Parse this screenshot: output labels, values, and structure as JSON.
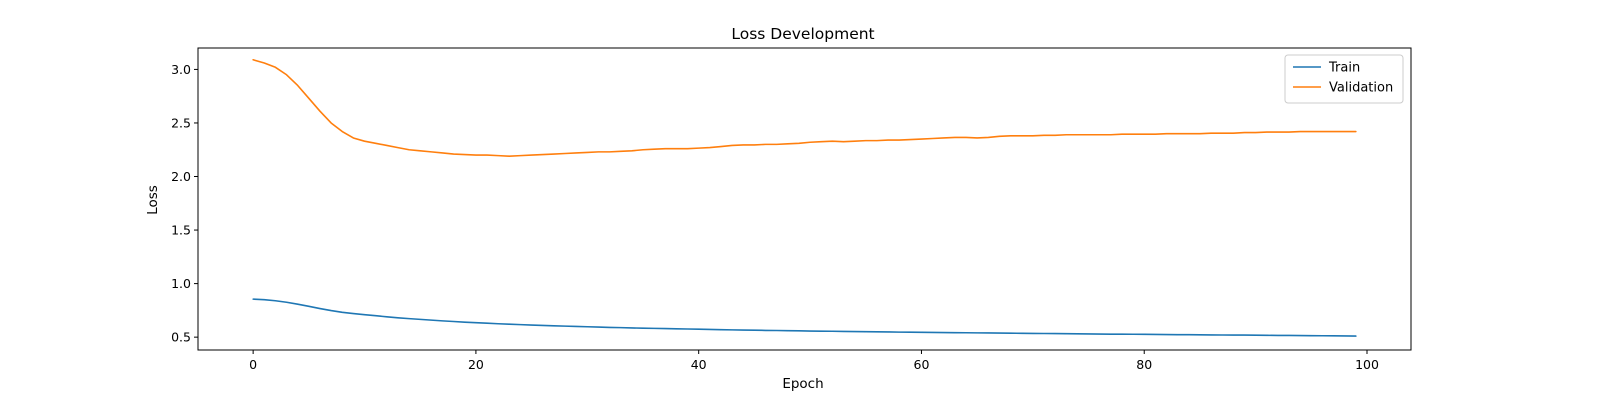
{
  "chart_data": {
    "type": "line",
    "title": "Loss Development",
    "xlabel": "Epoch",
    "ylabel": "Loss",
    "xlim": [
      -4.95,
      103.95
    ],
    "ylim": [
      0.38,
      3.2
    ],
    "xticks": [
      0,
      20,
      40,
      60,
      80,
      100
    ],
    "yticks": [
      0.5,
      1.0,
      1.5,
      2.0,
      2.5,
      3.0
    ],
    "xtick_labels": [
      "0",
      "20",
      "40",
      "60",
      "80",
      "100"
    ],
    "ytick_labels": [
      "0.5",
      "1.0",
      "1.5",
      "2.0",
      "2.5",
      "3.0"
    ],
    "grid": false,
    "legend_position": "top-right",
    "colors": {
      "Train": "#1f77b4",
      "Validation": "#ff7f0e"
    },
    "series": [
      {
        "name": "Train",
        "x": [
          0,
          1,
          2,
          3,
          4,
          5,
          6,
          7,
          8,
          9,
          10,
          11,
          12,
          13,
          14,
          15,
          16,
          17,
          18,
          19,
          20,
          21,
          22,
          23,
          24,
          25,
          26,
          27,
          28,
          29,
          30,
          31,
          32,
          33,
          34,
          35,
          36,
          37,
          38,
          39,
          40,
          41,
          42,
          43,
          44,
          45,
          46,
          47,
          48,
          49,
          50,
          51,
          52,
          53,
          54,
          55,
          56,
          57,
          58,
          59,
          60,
          61,
          62,
          63,
          64,
          65,
          66,
          67,
          68,
          69,
          70,
          71,
          72,
          73,
          74,
          75,
          76,
          77,
          78,
          79,
          80,
          81,
          82,
          83,
          84,
          85,
          86,
          87,
          88,
          89,
          90,
          91,
          92,
          93,
          94,
          95,
          96,
          97,
          98,
          99
        ],
        "values": [
          0.855,
          0.85,
          0.84,
          0.826,
          0.808,
          0.788,
          0.767,
          0.748,
          0.732,
          0.72,
          0.71,
          0.7,
          0.69,
          0.681,
          0.673,
          0.666,
          0.659,
          0.652,
          0.646,
          0.64,
          0.635,
          0.63,
          0.625,
          0.621,
          0.617,
          0.613,
          0.609,
          0.606,
          0.603,
          0.6,
          0.597,
          0.594,
          0.591,
          0.589,
          0.586,
          0.584,
          0.582,
          0.58,
          0.578,
          0.576,
          0.574,
          0.572,
          0.57,
          0.568,
          0.566,
          0.565,
          0.563,
          0.562,
          0.56,
          0.559,
          0.557,
          0.556,
          0.555,
          0.553,
          0.552,
          0.551,
          0.55,
          0.549,
          0.547,
          0.546,
          0.545,
          0.544,
          0.543,
          0.542,
          0.541,
          0.54,
          0.539,
          0.538,
          0.537,
          0.536,
          0.535,
          0.534,
          0.533,
          0.532,
          0.531,
          0.53,
          0.529,
          0.528,
          0.528,
          0.527,
          0.526,
          0.525,
          0.524,
          0.523,
          0.523,
          0.522,
          0.521,
          0.52,
          0.519,
          0.519,
          0.518,
          0.517,
          0.516,
          0.516,
          0.515,
          0.514,
          0.513,
          0.512,
          0.511,
          0.51
        ]
      },
      {
        "name": "Validation",
        "x": [
          0,
          1,
          2,
          3,
          4,
          5,
          6,
          7,
          8,
          9,
          10,
          11,
          12,
          13,
          14,
          15,
          16,
          17,
          18,
          19,
          20,
          21,
          22,
          23,
          24,
          25,
          26,
          27,
          28,
          29,
          30,
          31,
          32,
          33,
          34,
          35,
          36,
          37,
          38,
          39,
          40,
          41,
          42,
          43,
          44,
          45,
          46,
          47,
          48,
          49,
          50,
          51,
          52,
          53,
          54,
          55,
          56,
          57,
          58,
          59,
          60,
          61,
          62,
          63,
          64,
          65,
          66,
          67,
          68,
          69,
          70,
          71,
          72,
          73,
          74,
          75,
          76,
          77,
          78,
          79,
          80,
          81,
          82,
          83,
          84,
          85,
          86,
          87,
          88,
          89,
          90,
          91,
          92,
          93,
          94,
          95,
          96,
          97,
          98,
          99
        ],
        "values": [
          3.09,
          3.06,
          3.02,
          2.95,
          2.85,
          2.73,
          2.61,
          2.5,
          2.42,
          2.36,
          2.33,
          2.31,
          2.29,
          2.27,
          2.25,
          2.24,
          2.23,
          2.22,
          2.21,
          2.205,
          2.2,
          2.2,
          2.195,
          2.19,
          2.195,
          2.2,
          2.205,
          2.21,
          2.215,
          2.22,
          2.225,
          2.23,
          2.23,
          2.235,
          2.24,
          2.25,
          2.255,
          2.26,
          2.26,
          2.26,
          2.265,
          2.27,
          2.28,
          2.29,
          2.295,
          2.295,
          2.3,
          2.3,
          2.305,
          2.31,
          2.32,
          2.325,
          2.33,
          2.325,
          2.33,
          2.335,
          2.335,
          2.34,
          2.34,
          2.345,
          2.35,
          2.355,
          2.36,
          2.365,
          2.365,
          2.36,
          2.365,
          2.375,
          2.38,
          2.38,
          2.38,
          2.385,
          2.385,
          2.39,
          2.39,
          2.39,
          2.39,
          2.39,
          2.395,
          2.395,
          2.395,
          2.395,
          2.4,
          2.4,
          2.4,
          2.4,
          2.405,
          2.405,
          2.405,
          2.41,
          2.41,
          2.415,
          2.415,
          2.415,
          2.42,
          2.42,
          2.42,
          2.42,
          2.42,
          2.42
        ]
      }
    ]
  }
}
